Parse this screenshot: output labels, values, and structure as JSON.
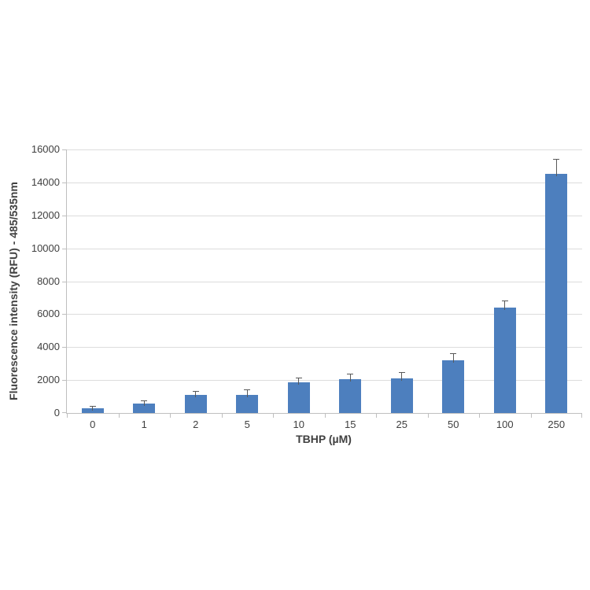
{
  "chart_data": {
    "type": "bar",
    "title": "",
    "xlabel": "TBHP (µM)",
    "ylabel": "Fluorescence intensity (RFU) - 485/535nm",
    "categories": [
      "0",
      "1",
      "2",
      "5",
      "10",
      "15",
      "25",
      "50",
      "100",
      "250"
    ],
    "values": [
      290,
      570,
      1080,
      1120,
      1860,
      2040,
      2080,
      3200,
      6400,
      14500
    ],
    "errors_upper": [
      100,
      150,
      200,
      280,
      250,
      320,
      350,
      370,
      380,
      900
    ],
    "yticks": [
      0,
      2000,
      4000,
      6000,
      8000,
      10000,
      12000,
      14000,
      16000
    ],
    "ylim": [
      0,
      16000
    ],
    "grid": true,
    "legend": false
  },
  "colors": {
    "bar": "#4d7fbe",
    "gridline": "#dcdcdc",
    "axis_line": "#bfbfbf",
    "tick_text": "#404040",
    "error_bar": "#595959",
    "background": "#ffffff"
  }
}
